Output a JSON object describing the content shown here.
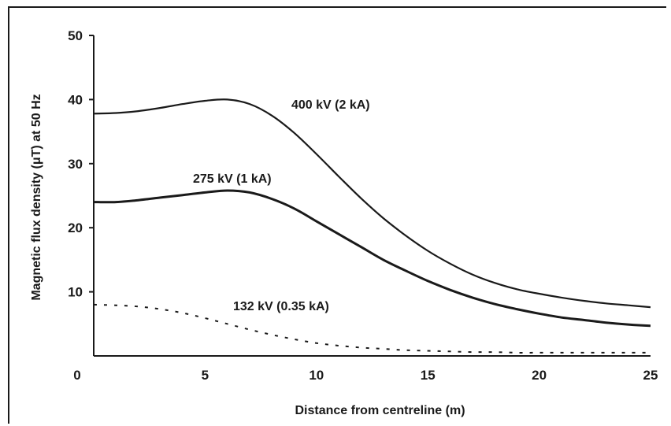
{
  "chart_data": {
    "type": "line",
    "title": "",
    "xlabel": "Distance from centreline (m)",
    "ylabel": "Magnetic flux density (μT) at 50 Hz",
    "xlim": [
      0,
      25
    ],
    "ylim": [
      0,
      50
    ],
    "x_ticks": [
      "0",
      "5",
      "10",
      "15",
      "20",
      "25"
    ],
    "y_ticks": [
      "10",
      "20",
      "30",
      "40",
      "50"
    ],
    "grid": false,
    "legend": "none",
    "series": [
      {
        "name": "400 kV (2 kA)",
        "style": "solid",
        "x": [
          0,
          1,
          2,
          3,
          4,
          5,
          6,
          7,
          8,
          9,
          10,
          11,
          12,
          13,
          14,
          15,
          16,
          17,
          18,
          19,
          20,
          21,
          22,
          23,
          24,
          25
        ],
        "y": [
          37.8,
          37.9,
          38.2,
          38.7,
          39.3,
          39.8,
          40.0,
          39.3,
          37.5,
          34.8,
          31.5,
          28.0,
          24.6,
          21.5,
          18.8,
          16.4,
          14.4,
          12.7,
          11.4,
          10.4,
          9.7,
          9.1,
          8.6,
          8.2,
          7.9,
          7.6
        ]
      },
      {
        "name": "275 kV (1 kA)",
        "style": "solid",
        "x": [
          0,
          1,
          2,
          3,
          4,
          5,
          6,
          7,
          8,
          9,
          10,
          11,
          12,
          13,
          14,
          15,
          16,
          17,
          18,
          19,
          20,
          21,
          22,
          23,
          24,
          25
        ],
        "y": [
          24.0,
          24.0,
          24.3,
          24.7,
          25.1,
          25.5,
          25.8,
          25.5,
          24.5,
          23.0,
          21.0,
          19.0,
          17.0,
          15.0,
          13.3,
          11.7,
          10.3,
          9.1,
          8.1,
          7.3,
          6.6,
          6.0,
          5.6,
          5.2,
          4.9,
          4.7
        ]
      },
      {
        "name": "132 kV (0.35 kA)",
        "style": "dotted",
        "x": [
          0,
          1,
          2,
          3,
          4,
          5,
          6,
          7,
          8,
          9,
          10,
          11,
          12,
          13,
          14,
          15,
          16,
          17,
          18,
          19,
          20,
          21,
          22,
          23,
          24,
          25
        ],
        "y": [
          8.0,
          7.9,
          7.7,
          7.3,
          6.7,
          5.9,
          5.0,
          4.1,
          3.3,
          2.6,
          2.0,
          1.6,
          1.3,
          1.1,
          0.9,
          0.8,
          0.7,
          0.6,
          0.6,
          0.5,
          0.5,
          0.5,
          0.5,
          0.5,
          0.5,
          0.5
        ]
      }
    ]
  }
}
